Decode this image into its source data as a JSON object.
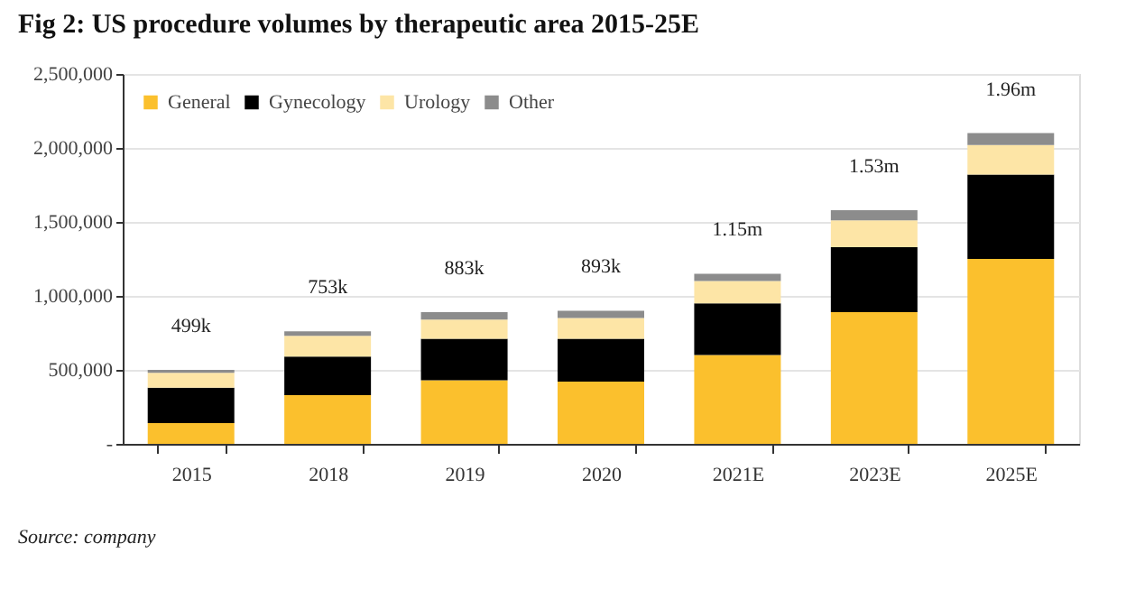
{
  "chart_data": {
    "type": "bar",
    "stacked": true,
    "title": "Fig 2: US procedure volumes by therapeutic area 2015-25E",
    "categories": [
      "2015",
      "2018",
      "2019",
      "2020",
      "2021E",
      "2023E",
      "2025E"
    ],
    "series": [
      {
        "name": "General",
        "color": "#fbc02d",
        "values": [
          140000,
          330000,
          430000,
          420000,
          600000,
          890000,
          1250000
        ]
      },
      {
        "name": "Gynecology",
        "color": "#000000",
        "values": [
          240000,
          260000,
          280000,
          290000,
          350000,
          440000,
          570000
        ]
      },
      {
        "name": "Urology",
        "color": "#fde5a6",
        "values": [
          100000,
          140000,
          130000,
          140000,
          150000,
          180000,
          200000
        ]
      },
      {
        "name": "Other",
        "color": "#8c8c8c",
        "values": [
          20000,
          30000,
          50000,
          50000,
          50000,
          70000,
          80000
        ]
      }
    ],
    "ylim": [
      0,
      2500000
    ],
    "yticks": [
      {
        "value": 0,
        "label": "-"
      },
      {
        "value": 500000,
        "label": "500,000"
      },
      {
        "value": 1000000,
        "label": "1,000,000"
      },
      {
        "value": 1500000,
        "label": "1,500,000"
      },
      {
        "value": 2000000,
        "label": "2,000,000"
      },
      {
        "value": 2500000,
        "label": "2,500,000"
      }
    ],
    "grid": "y",
    "legend": "top left",
    "annotations": [
      {
        "text": "499k",
        "x": "2015",
        "y": 500000
      },
      {
        "text": "753k",
        "x": "2018",
        "y": 760000
      },
      {
        "text": "883k",
        "x": "2019",
        "y": 890000
      },
      {
        "text": "893k",
        "x": "2020",
        "y": 900000
      },
      {
        "text": "1.15m",
        "x": "2021E",
        "y": 1150000
      },
      {
        "text": "1.53m",
        "x": "2023E",
        "y": 1580000
      },
      {
        "text": "1.96m",
        "x": "2025E",
        "y": 2100000
      },
      "Source: company"
    ]
  }
}
